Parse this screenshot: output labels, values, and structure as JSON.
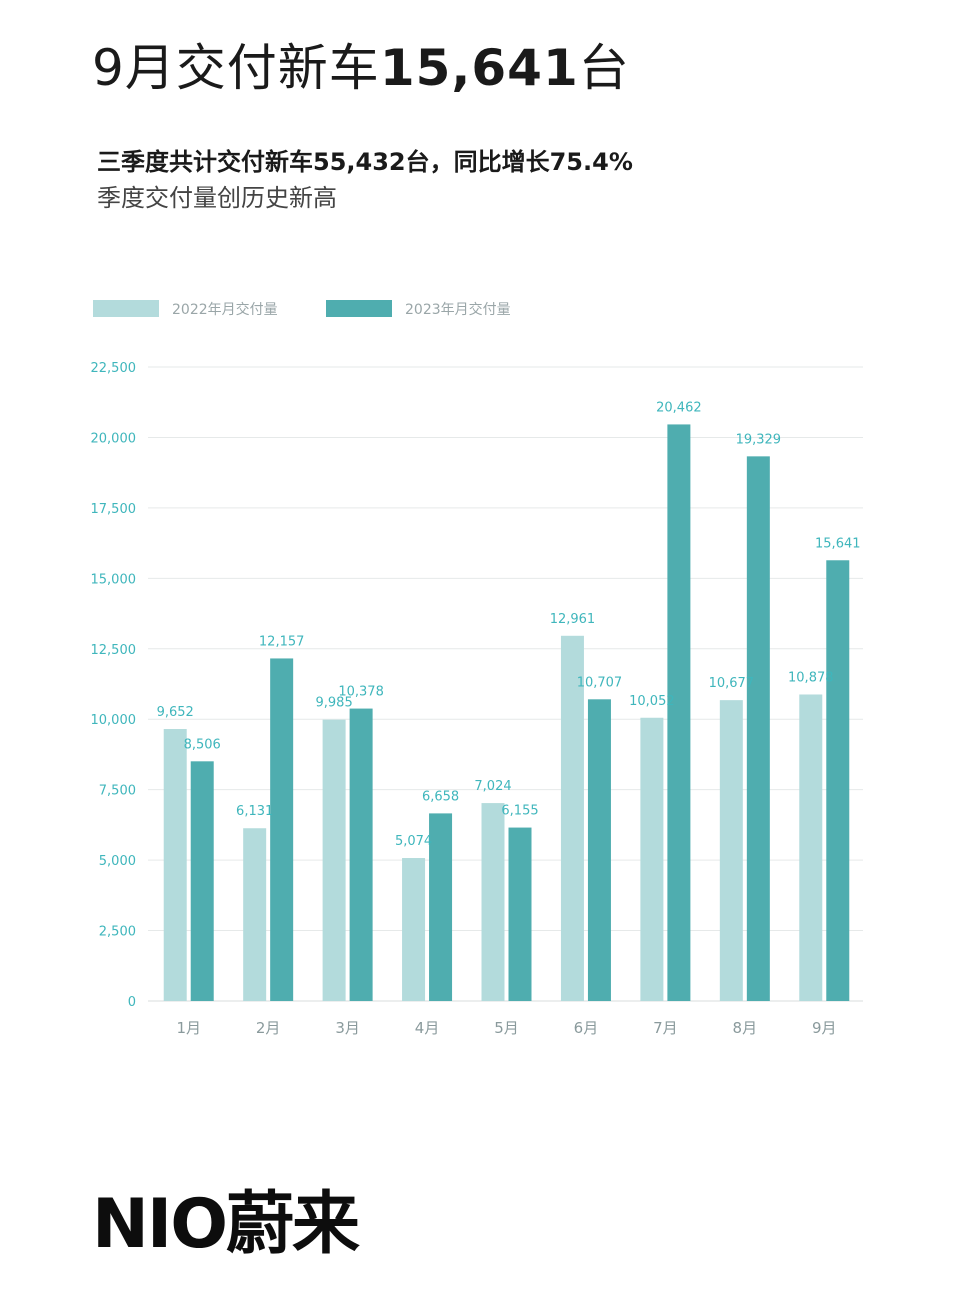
{
  "header": {
    "title_prefix": "9月交付新车",
    "title_number": "15,641",
    "title_suffix": "台",
    "subtitle_bold": "三季度共计交付新车55,432台，同比增长75.4%",
    "subtitle": "季度交付量创历史新高"
  },
  "colors": {
    "series_2022": "#b3dbdc",
    "series_2023": "#4fadaf",
    "label": "#3fb6bc",
    "grid": "#e6e9e9"
  },
  "chart_data": {
    "type": "bar",
    "categories": [
      "1月",
      "2月",
      "3月",
      "4月",
      "5月",
      "6月",
      "7月",
      "8月",
      "9月"
    ],
    "series": [
      {
        "name": "2022年月交付量",
        "values": [
          9652,
          6131,
          9985,
          5074,
          7024,
          12961,
          10052,
          10677,
          10878
        ]
      },
      {
        "name": "2023年月交付量",
        "values": [
          8506,
          12157,
          10378,
          6658,
          6155,
          10707,
          20462,
          19329,
          15641
        ]
      }
    ],
    "data_labels": [
      [
        "9,652",
        "6,131",
        "9,985",
        "5,074",
        "7,024",
        "12,961",
        "10,052",
        "10,677",
        "10,878"
      ],
      [
        "8,506",
        "12,157",
        "10,378",
        "6,658",
        "6,155",
        "10,707",
        "20,462",
        "19,329",
        "15,641"
      ]
    ],
    "yticks": [
      0,
      2500,
      5000,
      7500,
      10000,
      12500,
      15000,
      17500,
      20000,
      22500
    ],
    "ytick_labels": [
      "0",
      "2,500",
      "5,000",
      "7,500",
      "10,000",
      "12,500",
      "15,000",
      "17,500",
      "20,000",
      "22,500"
    ],
    "ylim": [
      0,
      22500
    ],
    "grid": true,
    "legend_position": "top-left"
  },
  "brand": {
    "logo_text": "NIO蔚来"
  }
}
